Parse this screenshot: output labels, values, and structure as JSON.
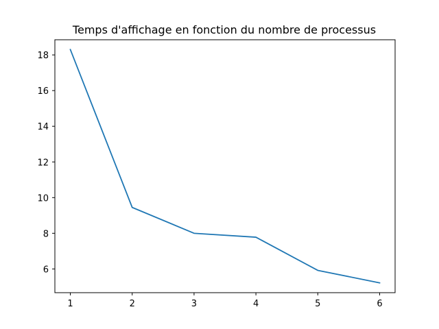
{
  "chart_data": {
    "type": "line",
    "title": "Temps d'affichage en fonction du nombre de processus",
    "xlabel": "",
    "ylabel": "",
    "x": [
      1,
      2,
      3,
      4,
      5,
      6
    ],
    "series": [
      {
        "values": [
          18.3,
          9.45,
          8.0,
          7.78,
          5.92,
          5.22
        ],
        "color": "#1f77b4"
      }
    ],
    "xticks": [
      1,
      2,
      3,
      4,
      5,
      6
    ],
    "yticks": [
      6,
      8,
      10,
      12,
      14,
      16,
      18
    ],
    "xlim": [
      0.75,
      6.25
    ],
    "ylim": [
      4.67,
      18.85
    ],
    "grid": false,
    "legend": "none"
  }
}
